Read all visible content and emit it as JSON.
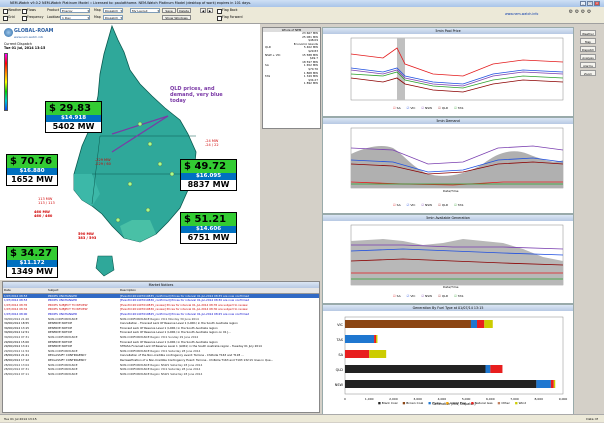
{
  "window": {
    "title": "NEM-Watch v9.0.2 NEM-Watch Platinum Model :: Licensed to: paulatthome. NEM-Watch Platinum Model (desktop of work) expires in 101 days.",
    "logo_url": "www.nem-watch.info",
    "right_title": "Data: M"
  },
  "toolbar": {
    "checks": [
      "Weather",
      "Grid",
      "Flows",
      "Frequency"
    ],
    "product_label": "Product",
    "product_value": "Energy",
    "lookback_label": "Lookback",
    "lookback_value": "1 Day",
    "map_label": "Map",
    "map_value": "Dispatch",
    "map2_value": "Dispatch",
    "layout_value": "My Layout",
    "save_label": "Save",
    "delete_label": "Delete",
    "show_windows_label": "Show Windows",
    "flag_back": "Flag Back",
    "flag_forward": "Flag Forward",
    "right_url": "www.nem-watch.info"
  },
  "map": {
    "brand": "GLOBAL-ROAM",
    "brand_url": "www.nem-watch.info",
    "current_dispatch_label": "Current Dispatch",
    "current_dispatch_time": "Tue 01 Jul, 2014 13:15",
    "annotation": "QLD prices, and demand, very blue today",
    "regions": [
      {
        "id": "qld",
        "price": "$ 29.83",
        "price2": "$14.918",
        "demand": "5402 MW",
        "color": "#33cc33"
      },
      {
        "id": "sa",
        "price": "$ 70.76",
        "price2": "$16.880",
        "demand": "1652 MW",
        "color": "#33cc33"
      },
      {
        "id": "nsw",
        "price": "$ 49.72",
        "price2": "$16.095",
        "demand": "8837 MW",
        "color": "#33cc33"
      },
      {
        "id": "vic",
        "price": "$ 51.21",
        "price2": "$14.606",
        "demand": "6751 MW",
        "color": "#33cc33"
      },
      {
        "id": "tas",
        "price": "$ 34.27",
        "price2": "$11.172",
        "demand": "1349 MW",
        "color": "#33cc33"
      }
    ],
    "flows": [
      {
        "text": "-229 MW",
        "sub": "-229 / 60"
      },
      {
        "text": "-24 MW",
        "sub": "-24 / 22"
      },
      {
        "text": "113 MW",
        "sub": "113 / 113"
      },
      {
        "text": "460 MW",
        "sub": "460 / 460"
      },
      {
        "text": "590 MW",
        "sub": "383 / 593"
      }
    ]
  },
  "summary": {
    "header": "Whole of NEM",
    "rows": [
      {
        "k": "",
        "v": "23 667 MW"
      },
      {
        "k": "",
        "v": "25 081 MW"
      },
      {
        "k": "",
        "v": "$48.09"
      },
      {
        "k": "",
        "v": "Economic Islands"
      },
      {
        "k": "QLD",
        "v": "5 402 MW"
      },
      {
        "k": "",
        "v": "$29.83"
      },
      {
        "k": "NSW + VIC",
        "v": "15 588 MW"
      },
      {
        "k": "",
        "v": "$49.7"
      },
      {
        "k": "",
        "v": "18 597 MW"
      },
      {
        "k": "SA",
        "v": "1 652 MW"
      },
      {
        "k": "",
        "v": "$70.76"
      },
      {
        "k": "",
        "v": "1 868 MW"
      },
      {
        "k": "TAS",
        "v": "1 349 MW"
      },
      {
        "k": "",
        "v": "$34.27"
      },
      {
        "k": "",
        "v": "1 892 MW"
      }
    ]
  },
  "side_buttons": [
    "Weather",
    "Map",
    "Dispatch",
    "Analysis",
    "Alarms",
    "Zoom"
  ],
  "charts": {
    "price": {
      "title": "5min Pool Price",
      "xticks": [
        "30/06/2014 18:00",
        "1/07/2014 00:00",
        "1/07/2014 06:00",
        "1/07/2014 12:00"
      ]
    },
    "demand": {
      "title": "5min Demand",
      "yticks": [
        "10,000",
        "8,000",
        "6,000",
        "4,000",
        "2,000"
      ],
      "xlabel": "Date/Time"
    },
    "avail": {
      "title": "5min Available Generation",
      "yticks": [
        "37,000",
        "35,000",
        "33,000",
        "31,000",
        "29,000"
      ],
      "xlabel": "Date/Time"
    },
    "legend": [
      "SA",
      "VIC",
      "NSW",
      "QLD",
      "TAS"
    ],
    "legend_colors": [
      "#e31a1c",
      "#1f4fe0",
      "#7a3fb0",
      "#8b0000",
      "#2ca02c"
    ]
  },
  "notices": {
    "title": "Market Notices",
    "columns": [
      "Date",
      "Subject",
      "Description"
    ],
    "rows": [
      [
        "1/07/2014 08:53",
        "PRICES UNCHANGED",
        "[EventId:201407010835_confirmed] Prices for interval 01-Jul-2014 08:35 are now confirmed",
        "sel"
      ],
      [
        "1/07/2014 08:53",
        "PRICES UNCHANGED",
        "[EventId:201407010830_confirmed] Prices for interval 01-Jul-2014 08:30 are now confirmed",
        "unc"
      ],
      [
        "1/07/2014 08:35",
        "PRICES SUBJECT TO REVIEW",
        "[EventId:201407010835_review] Prices for interval 01-Jul-2014 08:35 are subject to review",
        "rev"
      ],
      [
        "1/07/2014 08:32",
        "PRICES SUBJECT TO REVIEW",
        "[EventId:201407010830_review] Prices for interval 01-Jul-2014 08:30 are subject to review",
        "rev"
      ],
      [
        "1/07/2014 08:00",
        "PRICES UNCHANGED",
        "[EventId:201407010825_confirmed] Prices for interval 01-Jul-2014 08:25 are now confirmed",
        "unc"
      ],
      [
        "30/06/2014 21:20",
        "NON-CONFORMANCE",
        "NON-CONFORMANCE Region VIC1 Monday 30 June 2014",
        "nc"
      ],
      [
        "30/06/2014 18:55",
        "RESERVE NOTICE",
        "Cancellation - Forecast Lack Of Reserve Level 1 (LOR1) in the South Australia region",
        "bl"
      ],
      [
        "30/06/2014 13:15",
        "RESERVE NOTICE",
        "Forecast Lack Of Reserve Level 1 (LOR1) in the South Australia region",
        "bl"
      ],
      [
        "30/06/2014 12:51",
        "RESERVE NOTICE",
        "Forecast Lack Of Reserve Level 1 (LOR1) in the South Australia region on 01 J...",
        "bl"
      ],
      [
        "30/06/2014 07:31",
        "NON-CONFORMANCE",
        "NON-CONFORMANCE Region VIC1 Sunday 29 June 2014",
        "nc"
      ],
      [
        "29/06/2014 15:00",
        "RESERVE NOTICE",
        "Forecast Lack Of Reserve Level 1 (LOR1) in the South Australia region",
        "bl"
      ],
      [
        "29/06/2014 13:21",
        "RESERVE NOTICE",
        "STPASA Forecast Lack Of Reserve Level 1 (LOR1) in the South Australia region - Tuesday 01 July 2014",
        "bl"
      ],
      [
        "29/06/2014 11:54",
        "NON-CONFORMANCE",
        "NON-CONFORMANCE Region VIC1 Saturday 28 June 2014",
        "nc"
      ],
      [
        "28/06/2014 21:41",
        "RECLASSIFY CONTINGENCY",
        "Cancellation of the Non-credible contingency event: Tarrone - Chiltolle T163 and T193 ...",
        "bl"
      ],
      [
        "28/06/2014 17:12",
        "RECLASSIFY CONTINGENCY",
        "Reclassification of a Non-Credible Contingency Event: Tarrone - Chiltolle T163 and T193 132 kV lines in Que...",
        "bl"
      ],
      [
        "28/06/2014 13:04",
        "NON-CONFORMANCE",
        "NON-CONFORMANCE Region NSW1 Saturday 28 June 2014",
        "nc"
      ],
      [
        "28/06/2014 07:31",
        "NON-CONFORMANCE",
        "NON-CONFORMANCE Region VIC1 Saturday 28 June 2014",
        "nc"
      ],
      [
        "28/06/2014 07:11",
        "NON-CONFORMANCE",
        "NON-CONFORMANCE Region NSW1 Saturday 28 June 2014",
        "nc"
      ]
    ]
  },
  "fuel_chart": {
    "title": "Generation By Fuel Type at 01/07/14 13:15",
    "xlabel": "Generation (MW, Dispatch)",
    "xticks": [
      "0",
      "1,000",
      "2,000",
      "3,000",
      "4,000",
      "5,000",
      "6,000",
      "7,000",
      "8,000",
      "9,000"
    ],
    "xmax": 9000,
    "fuels": [
      "Black Coal",
      "Brown Coal",
      "Hydro",
      "Liquid Fuel",
      "Natural Gas",
      "Other",
      "Wind"
    ],
    "fuel_colors": [
      "#222222",
      "#8b4513",
      "#1f77d0",
      "#f0a000",
      "#e81e1e",
      "#c08060",
      "#cccc00"
    ],
    "regions": [
      {
        "name": "VIC",
        "values": [
          0,
          5200,
          250,
          0,
          300,
          0,
          350
        ]
      },
      {
        "name": "TAS",
        "values": [
          0,
          0,
          1200,
          0,
          80,
          0,
          60
        ]
      },
      {
        "name": "SA",
        "values": [
          0,
          0,
          0,
          0,
          1000,
          0,
          700
        ]
      },
      {
        "name": "QLD",
        "values": [
          5800,
          0,
          200,
          0,
          500,
          0,
          0
        ]
      },
      {
        "name": "NSW",
        "values": [
          7900,
          0,
          600,
          0,
          120,
          0,
          60
        ]
      }
    ]
  },
  "status": {
    "left": "Tue 01 Jul 2014 13:15",
    "right": "Data: M"
  }
}
